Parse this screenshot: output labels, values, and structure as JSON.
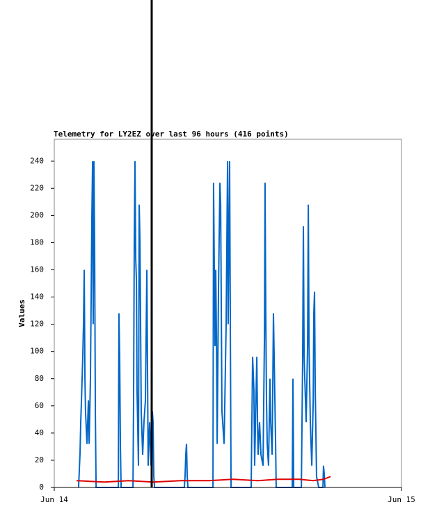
{
  "chart_data": {
    "type": "line",
    "title": "Telemetry for LY2EZ over last 96 hours (416 points)",
    "y_label": "Values",
    "xlim": [
      0,
      24
    ],
    "xticks": [
      {
        "value": 0,
        "label": "Jun 14"
      },
      {
        "value": 24,
        "label": "Jun 15"
      }
    ],
    "ylim": [
      0,
      256
    ],
    "yticks": [
      0,
      20,
      40,
      60,
      80,
      100,
      120,
      140,
      160,
      180,
      200,
      220,
      240
    ],
    "series": [
      {
        "color": "#0066c8",
        "x": [
          1.68,
          1.78,
          1.83,
          1.88,
          1.97,
          2.02,
          2.07,
          2.12,
          2.16,
          2.26,
          2.36,
          2.41,
          2.5,
          2.6,
          2.65,
          2.69,
          2.74,
          2.79,
          2.84,
          2.89,
          4.43,
          4.47,
          4.52,
          4.57,
          4.62,
          5.44,
          5.48,
          5.53,
          5.58,
          5.63,
          5.68,
          5.72,
          5.82,
          5.87,
          5.92,
          5.96,
          6.01,
          6.11,
          6.2,
          6.3,
          6.4,
          6.45,
          6.49,
          6.59,
          6.69,
          6.78,
          6.83,
          6.88,
          6.93,
          8.99,
          9.04,
          9.09,
          9.14,
          9.19,
          9.24,
          10.97,
          11.01,
          11.11,
          11.16,
          11.21,
          11.26,
          11.35,
          11.45,
          11.5,
          11.59,
          11.74,
          11.88,
          11.98,
          12.02,
          12.12,
          12.17,
          12.22,
          13.61,
          13.66,
          13.71,
          13.8,
          13.85,
          14.0,
          14.05,
          14.09,
          14.19,
          14.29,
          14.43,
          14.53,
          14.57,
          14.62,
          14.67,
          14.72,
          14.81,
          14.91,
          14.96,
          15.06,
          15.15,
          15.2,
          15.3,
          15.34,
          16.45,
          16.5,
          16.55,
          17.08,
          17.17,
          17.22,
          17.27,
          17.41,
          17.51,
          17.56,
          17.61,
          17.7,
          17.8,
          17.9,
          17.94,
          17.99,
          18.04,
          18.13,
          18.28,
          18.57,
          18.61,
          18.66,
          18.71
        ],
        "values": [
          0,
          25,
          48,
          64,
          96,
          120,
          160,
          80,
          56,
          32,
          64,
          32,
          80,
          200,
          240,
          120,
          240,
          176,
          56,
          0,
          0,
          128,
          96,
          32,
          0,
          0,
          60,
          180,
          240,
          168,
          152,
          72,
          16,
          208,
          182,
          130,
          56,
          24,
          48,
          64,
          160,
          80,
          16,
          48,
          16,
          56,
          48,
          8,
          0,
          0,
          8,
          24,
          32,
          8,
          0,
          0,
          224,
          104,
          160,
          112,
          32,
          144,
          224,
          208,
          56,
          32,
          120,
          240,
          120,
          240,
          120,
          0,
          0,
          48,
          96,
          72,
          16,
          96,
          48,
          24,
          48,
          24,
          16,
          112,
          224,
          128,
          64,
          32,
          16,
          80,
          48,
          24,
          128,
          96,
          32,
          0,
          0,
          80,
          0,
          0,
          96,
          192,
          96,
          48,
          104,
          208,
          104,
          48,
          16,
          64,
          128,
          144,
          72,
          8,
          0,
          0,
          16,
          10,
          0
        ]
      },
      {
        "color": "#e00000",
        "x": [
          1.54,
          3.46,
          5.15,
          6.83,
          8.75,
          10.68,
          12.36,
          14.05,
          15.49,
          16.93,
          17.89,
          18.61,
          19.1
        ],
        "values": [
          5,
          4,
          5,
          4,
          5,
          5,
          6,
          5,
          6,
          6,
          5,
          6,
          8
        ]
      }
    ]
  }
}
